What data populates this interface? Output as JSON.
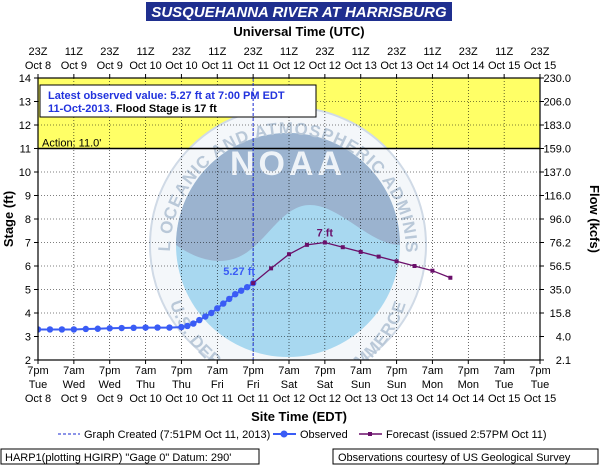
{
  "header": {
    "title": "SUSQUEHANNA RIVER AT HARRISBURG",
    "title_bg": "#1f2f8f"
  },
  "chart_data": {
    "type": "line",
    "title": "SUSQUEHANNA RIVER AT HARRISBURG",
    "top_axis_title": "Universal Time (UTC)",
    "bottom_axis_title": "Site Time (EDT)",
    "ylabel_left": "Stage (ft)",
    "ylabel_right": "Flow (kcfs)",
    "ylim": [
      2,
      14
    ],
    "xlim_hours": [
      0,
      168
    ],
    "x_ticks_hours": [
      0,
      12,
      24,
      36,
      48,
      60,
      72,
      84,
      96,
      108,
      120,
      132,
      144,
      156,
      168
    ],
    "left_ticks": [
      "2",
      "3",
      "4",
      "5",
      "6",
      "7",
      "8",
      "9",
      "10",
      "11",
      "12",
      "13",
      "14"
    ],
    "right_ticks": [
      {
        "stage": 2,
        "label": "2.1"
      },
      {
        "stage": 3,
        "label": "4.0"
      },
      {
        "stage": 4,
        "label": "15.8"
      },
      {
        "stage": 5,
        "label": "35.0"
      },
      {
        "stage": 6,
        "label": "56.5"
      },
      {
        "stage": 7,
        "label": "76.2"
      },
      {
        "stage": 8,
        "label": "96.0"
      },
      {
        "stage": 9,
        "label": "116.0"
      },
      {
        "stage": 10,
        "label": "137.0"
      },
      {
        "stage": 11,
        "label": "159.0"
      },
      {
        "stage": 12,
        "label": "183.0"
      },
      {
        "stage": 13,
        "label": "206.0"
      },
      {
        "stage": 14,
        "label": "230.0"
      }
    ],
    "top_ticks": [
      [
        "23Z",
        "Oct 8"
      ],
      [
        "11Z",
        "Oct 9"
      ],
      [
        "23Z",
        "Oct 9"
      ],
      [
        "11Z",
        "Oct 10"
      ],
      [
        "23Z",
        "Oct 10"
      ],
      [
        "11Z",
        "Oct 11"
      ],
      [
        "23Z",
        "Oct 11"
      ],
      [
        "11Z",
        "Oct 12"
      ],
      [
        "23Z",
        "Oct 12"
      ],
      [
        "11Z",
        "Oct 13"
      ],
      [
        "23Z",
        "Oct 13"
      ],
      [
        "11Z",
        "Oct 14"
      ],
      [
        "23Z",
        "Oct 14"
      ],
      [
        "11Z",
        "Oct 15"
      ],
      [
        "23Z",
        "Oct 15"
      ]
    ],
    "bottom_ticks": [
      [
        "7pm",
        "Tue",
        "Oct 8"
      ],
      [
        "7am",
        "Wed",
        "Oct 9"
      ],
      [
        "7pm",
        "Wed",
        "Oct 9"
      ],
      [
        "7am",
        "Thu",
        "Oct 10"
      ],
      [
        "7pm",
        "Thu",
        "Oct 10"
      ],
      [
        "7am",
        "Fri",
        "Oct 11"
      ],
      [
        "7pm",
        "Fri",
        "Oct 11"
      ],
      [
        "7am",
        "Sat",
        "Oct 12"
      ],
      [
        "7pm",
        "Sat",
        "Oct 12"
      ],
      [
        "7am",
        "Sun",
        "Oct 13"
      ],
      [
        "7pm",
        "Sun",
        "Oct 13"
      ],
      [
        "7am",
        "Mon",
        "Oct 14"
      ],
      [
        "7pm",
        "Mon",
        "Oct 14"
      ],
      [
        "7am",
        "Tue",
        "Oct 15"
      ],
      [
        "7pm",
        "Tue",
        "Oct 15"
      ]
    ],
    "flood_stage": 17,
    "action_stage": 11.0,
    "action_label": "Action: 11.0'",
    "action_band": [
      11,
      14
    ],
    "graph_created_hour": 72,
    "observed": {
      "name": "Observed",
      "color": "#3a5cf5",
      "x_hours": [
        0,
        4,
        8,
        12,
        16,
        20,
        24,
        28,
        32,
        36,
        40,
        44,
        48,
        50,
        52,
        54,
        56,
        58,
        60,
        62,
        64,
        66,
        68,
        70,
        72
      ],
      "y_ft": [
        3.3,
        3.3,
        3.3,
        3.3,
        3.32,
        3.33,
        3.35,
        3.36,
        3.37,
        3.38,
        3.38,
        3.38,
        3.4,
        3.45,
        3.55,
        3.7,
        3.85,
        4.0,
        4.2,
        4.4,
        4.6,
        4.8,
        4.95,
        5.1,
        5.27
      ]
    },
    "forecast": {
      "name": "Forecast (issued 2:57PM Oct 11)",
      "color": "#6a0f6a",
      "x_hours": [
        72,
        78,
        84,
        90,
        96,
        102,
        108,
        114,
        120,
        126,
        132,
        138
      ],
      "y_ft": [
        5.27,
        5.9,
        6.5,
        6.9,
        7.0,
        6.8,
        6.6,
        6.4,
        6.2,
        6.0,
        5.8,
        5.5
      ]
    },
    "annotations": [
      {
        "text": "5.27 ft",
        "x_hour": 72,
        "y": 5.27,
        "color": "#3a5cf5"
      },
      {
        "text": "7 ft",
        "x_hour": 96,
        "y": 7.0,
        "color": "#6a0f6a"
      }
    ],
    "info_box": {
      "line1": "Latest observed value: 5.27 ft at 7:00 PM EDT",
      "line2a": "11-Oct-2013.",
      "line2b": " Flood Stage is 17 ft"
    },
    "colors": {
      "action_band": "#ffff66",
      "grid": "#000000",
      "info_text": "#2233dd",
      "logo_light": "#a8d8f0",
      "logo_dark": "#9bb3cf"
    },
    "legend": {
      "graph_created": "Graph Created (7:51PM Oct 11, 2013)",
      "observed": "Observed",
      "forecast": "Forecast (issued 2:57PM Oct 11)"
    },
    "footer": {
      "left": "HARP1(plotting HGIRP) \"Gage 0\" Datum: 290'",
      "right": "Observations courtesy of US Geological Survey"
    },
    "watermark": {
      "top_text": "NATIONAL OCEANIC AND ATMOSPHERIC ADMINISTRATION",
      "bottom_text": "U.S. DEPARTMENT OF COMMERCE",
      "center_text": "NOAA"
    }
  }
}
